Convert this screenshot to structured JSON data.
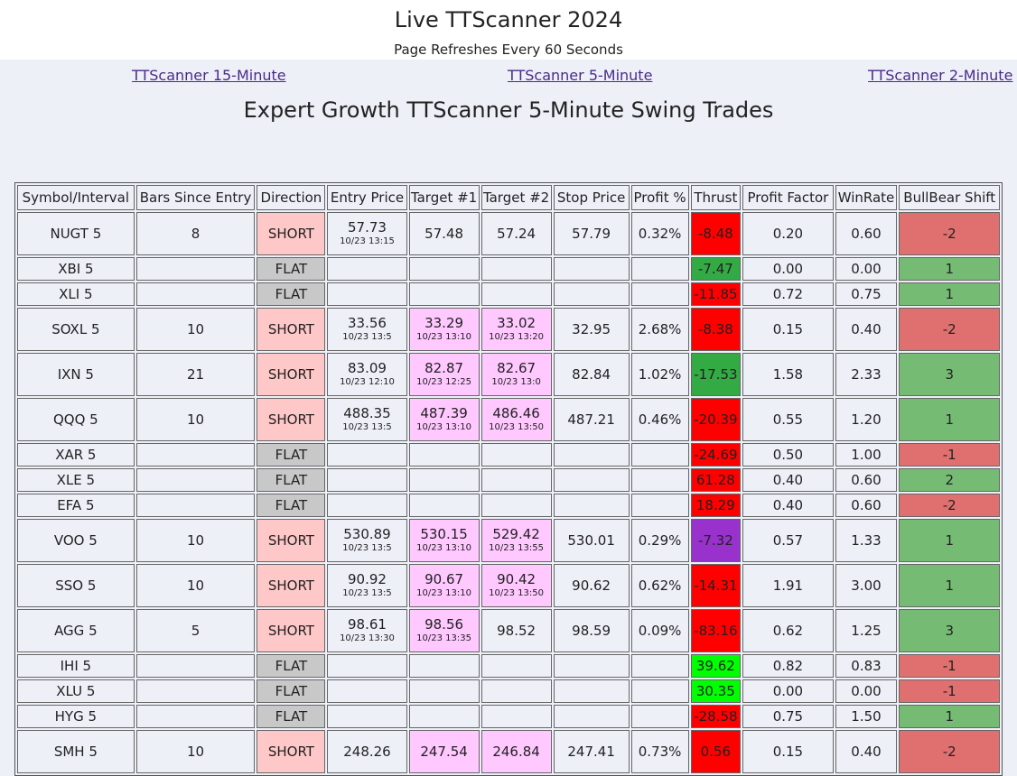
{
  "page": {
    "title": "Live TTScanner 2024",
    "subtitle": "Page Refreshes Every 60 Seconds",
    "links": [
      "TTScanner 15-Minute",
      "TTScanner 5-Minute",
      "TTScanner 2-Minute"
    ],
    "heading": "Expert Growth TTScanner 5-Minute Swing Trades"
  },
  "table": {
    "headers": [
      "Symbol/Interval",
      "Bars Since Entry",
      "Direction",
      "Entry Price",
      "Target #1",
      "Target #2",
      "Stop Price",
      "Profit %",
      "Thrust",
      "Profit Factor",
      "WinRate",
      "BullBear Shift"
    ],
    "rows": [
      {
        "symbol": "NUGT 5",
        "bars": "8",
        "direction": "SHORT",
        "entry": "57.73",
        "entry_time": "10/23 13:15",
        "t1": "57.48",
        "t1_time": "",
        "t2": "57.24",
        "t2_time": "",
        "stop": "57.79",
        "profit": "0.32%",
        "thrust": "-8.48",
        "thrust_color": "red",
        "pf": "0.20",
        "winrate": "0.60",
        "bb": "-2",
        "bb_color": "red"
      },
      {
        "symbol": "XBI 5",
        "bars": "",
        "direction": "FLAT",
        "entry": "",
        "entry_time": "",
        "t1": "",
        "t1_time": "",
        "t2": "",
        "t2_time": "",
        "stop": "",
        "profit": "",
        "thrust": "-7.47",
        "thrust_color": "green",
        "pf": "0.00",
        "winrate": "0.00",
        "bb": "1",
        "bb_color": "green"
      },
      {
        "symbol": "XLI 5",
        "bars": "",
        "direction": "FLAT",
        "entry": "",
        "entry_time": "",
        "t1": "",
        "t1_time": "",
        "t2": "",
        "t2_time": "",
        "stop": "",
        "profit": "",
        "thrust": "-11.85",
        "thrust_color": "red",
        "pf": "0.72",
        "winrate": "0.75",
        "bb": "1",
        "bb_color": "green"
      },
      {
        "symbol": "SOXL 5",
        "bars": "10",
        "direction": "SHORT",
        "entry": "33.56",
        "entry_time": "10/23 13:5",
        "t1": "33.29",
        "t1_time": "10/23 13:10",
        "t2": "33.02",
        "t2_time": "10/23 13:20",
        "stop": "32.95",
        "profit": "2.68%",
        "thrust": "-8.38",
        "thrust_color": "red",
        "pf": "0.15",
        "winrate": "0.40",
        "bb": "-2",
        "bb_color": "red"
      },
      {
        "symbol": "IXN 5",
        "bars": "21",
        "direction": "SHORT",
        "entry": "83.09",
        "entry_time": "10/23 12:10",
        "t1": "82.87",
        "t1_time": "10/23 12:25",
        "t2": "82.67",
        "t2_time": "10/23 13:0",
        "stop": "82.84",
        "profit": "1.02%",
        "thrust": "-17.53",
        "thrust_color": "green",
        "pf": "1.58",
        "winrate": "2.33",
        "bb": "3",
        "bb_color": "green"
      },
      {
        "symbol": "QQQ 5",
        "bars": "10",
        "direction": "SHORT",
        "entry": "488.35",
        "entry_time": "10/23 13:5",
        "t1": "487.39",
        "t1_time": "10/23 13:10",
        "t2": "486.46",
        "t2_time": "10/23 13:50",
        "stop": "487.21",
        "profit": "0.46%",
        "thrust": "-20.39",
        "thrust_color": "red",
        "pf": "0.55",
        "winrate": "1.20",
        "bb": "1",
        "bb_color": "green"
      },
      {
        "symbol": "XAR 5",
        "bars": "",
        "direction": "FLAT",
        "entry": "",
        "entry_time": "",
        "t1": "",
        "t1_time": "",
        "t2": "",
        "t2_time": "",
        "stop": "",
        "profit": "",
        "thrust": "-24.69",
        "thrust_color": "red",
        "pf": "0.50",
        "winrate": "1.00",
        "bb": "-1",
        "bb_color": "red"
      },
      {
        "symbol": "XLE 5",
        "bars": "",
        "direction": "FLAT",
        "entry": "",
        "entry_time": "",
        "t1": "",
        "t1_time": "",
        "t2": "",
        "t2_time": "",
        "stop": "",
        "profit": "",
        "thrust": "61.28",
        "thrust_color": "red",
        "pf": "0.40",
        "winrate": "0.60",
        "bb": "2",
        "bb_color": "green"
      },
      {
        "symbol": "EFA 5",
        "bars": "",
        "direction": "FLAT",
        "entry": "",
        "entry_time": "",
        "t1": "",
        "t1_time": "",
        "t2": "",
        "t2_time": "",
        "stop": "",
        "profit": "",
        "thrust": "18.29",
        "thrust_color": "red",
        "pf": "0.40",
        "winrate": "0.60",
        "bb": "-2",
        "bb_color": "red"
      },
      {
        "symbol": "VOO 5",
        "bars": "10",
        "direction": "SHORT",
        "entry": "530.89",
        "entry_time": "10/23 13:5",
        "t1": "530.15",
        "t1_time": "10/23 13:10",
        "t2": "529.42",
        "t2_time": "10/23 13:55",
        "stop": "530.01",
        "profit": "0.29%",
        "thrust": "-7.32",
        "thrust_color": "purple",
        "pf": "0.57",
        "winrate": "1.33",
        "bb": "1",
        "bb_color": "green"
      },
      {
        "symbol": "SSO 5",
        "bars": "10",
        "direction": "SHORT",
        "entry": "90.92",
        "entry_time": "10/23 13:5",
        "t1": "90.67",
        "t1_time": "10/23 13:10",
        "t2": "90.42",
        "t2_time": "10/23 13:50",
        "stop": "90.62",
        "profit": "0.62%",
        "thrust": "-14.31",
        "thrust_color": "red",
        "pf": "1.91",
        "winrate": "3.00",
        "bb": "1",
        "bb_color": "green"
      },
      {
        "symbol": "AGG 5",
        "bars": "5",
        "direction": "SHORT",
        "entry": "98.61",
        "entry_time": "10/23 13:30",
        "t1": "98.56",
        "t1_time": "10/23 13:35",
        "t2": "98.52",
        "t2_time": "",
        "stop": "98.59",
        "profit": "0.09%",
        "thrust": "-83.16",
        "thrust_color": "red",
        "pf": "0.62",
        "winrate": "1.25",
        "bb": "3",
        "bb_color": "green"
      },
      {
        "symbol": "IHI 5",
        "bars": "",
        "direction": "FLAT",
        "entry": "",
        "entry_time": "",
        "t1": "",
        "t1_time": "",
        "t2": "",
        "t2_time": "",
        "stop": "",
        "profit": "",
        "thrust": "39.62",
        "thrust_color": "bright",
        "pf": "0.82",
        "winrate": "0.83",
        "bb": "-1",
        "bb_color": "red"
      },
      {
        "symbol": "XLU 5",
        "bars": "",
        "direction": "FLAT",
        "entry": "",
        "entry_time": "",
        "t1": "",
        "t1_time": "",
        "t2": "",
        "t2_time": "",
        "stop": "",
        "profit": "",
        "thrust": "30.35",
        "thrust_color": "bright",
        "pf": "0.00",
        "winrate": "0.00",
        "bb": "-1",
        "bb_color": "red"
      },
      {
        "symbol": "HYG 5",
        "bars": "",
        "direction": "FLAT",
        "entry": "",
        "entry_time": "",
        "t1": "",
        "t1_time": "",
        "t2": "",
        "t2_time": "",
        "stop": "",
        "profit": "",
        "thrust": "-28.58",
        "thrust_color": "red",
        "pf": "0.75",
        "winrate": "1.50",
        "bb": "1",
        "bb_color": "green"
      },
      {
        "symbol": "SMH 5",
        "bars": "10",
        "direction": "SHORT",
        "entry": "248.26",
        "entry_time": "",
        "t1": "247.54",
        "t1_time": "",
        "t2": "246.84",
        "t2_time": "",
        "stop": "247.41",
        "profit": "0.73%",
        "thrust": "0.56",
        "thrust_color": "red",
        "pf": "0.15",
        "winrate": "0.40",
        "bb": "-2",
        "bb_color": "red"
      }
    ]
  },
  "colors": {
    "short_bg": "#ffc8c8",
    "flat_bg": "#c8c8c8",
    "target_bg": "#ffc8ff",
    "thrust_red": "#ff0000",
    "thrust_green": "#33aa44",
    "thrust_bright": "#00ff00",
    "thrust_purple": "#9932cc",
    "bb_red": "#e07070",
    "bb_green": "#76bb74"
  }
}
